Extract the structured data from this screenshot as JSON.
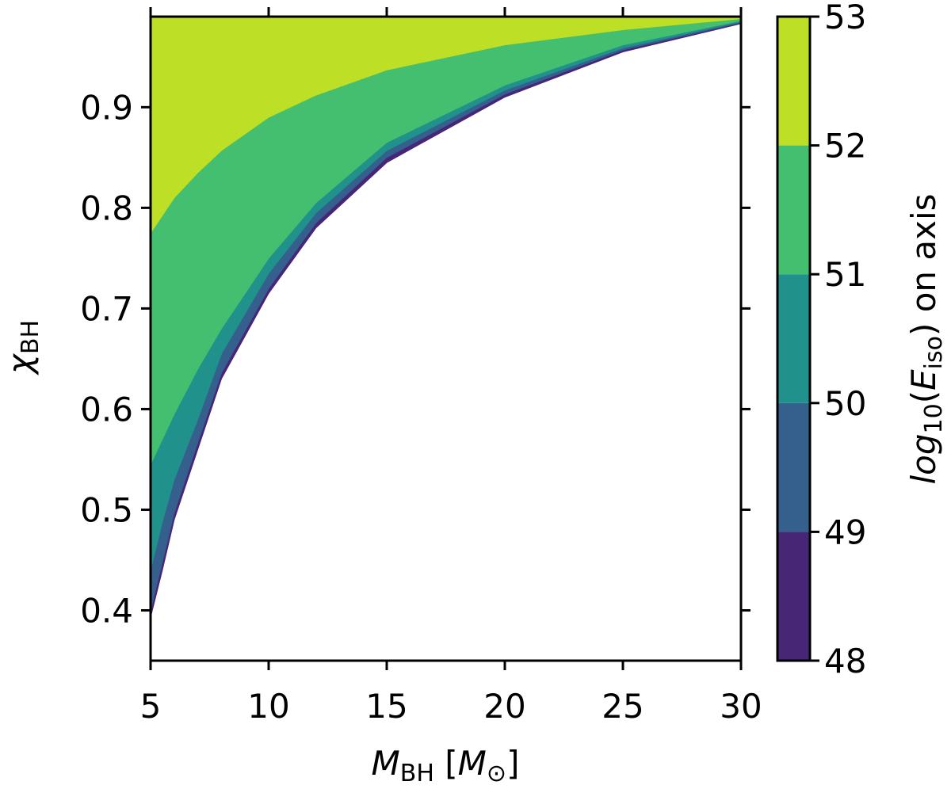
{
  "chart_data": {
    "type": "contourf",
    "xlabel": "M_BH [M_⊙]",
    "ylabel": "χ_BH",
    "xlim": [
      5,
      30
    ],
    "ylim": [
      0.35,
      0.99
    ],
    "xticks": [
      5,
      10,
      15,
      20,
      25,
      30
    ],
    "xtick_labels": [
      "5",
      "10",
      "15",
      "20",
      "25",
      "30"
    ],
    "yticks": [
      0.4,
      0.5,
      0.6,
      0.7,
      0.8,
      0.9
    ],
    "ytick_labels": [
      "0.4",
      "0.5",
      "0.6",
      "0.7",
      "0.8",
      "0.9"
    ],
    "colorbar": {
      "label": "log10(E_iso) on axis",
      "levels": [
        48,
        49,
        50,
        51,
        52,
        53
      ],
      "tick_labels": [
        "48",
        "49",
        "50",
        "51",
        "52",
        "53"
      ],
      "colors": [
        "#472676",
        "#355f8d",
        "#21918c",
        "#44bf70",
        "#bddf26"
      ]
    },
    "boundaries": [
      {
        "level": 48,
        "points": [
          [
            5,
            0.393
          ],
          [
            5.5,
            0.44
          ],
          [
            6,
            0.49
          ],
          [
            7,
            0.56
          ],
          [
            8,
            0.63
          ],
          [
            10,
            0.715
          ],
          [
            12,
            0.78
          ],
          [
            15,
            0.845
          ],
          [
            20,
            0.91
          ],
          [
            25,
            0.955
          ],
          [
            30,
            0.983
          ]
        ]
      },
      {
        "level": 49,
        "points": [
          [
            5,
            0.4
          ],
          [
            5.5,
            0.448
          ],
          [
            6,
            0.497
          ],
          [
            7,
            0.567
          ],
          [
            8,
            0.636
          ],
          [
            10,
            0.72
          ],
          [
            12,
            0.785
          ],
          [
            15,
            0.85
          ],
          [
            20,
            0.913
          ],
          [
            25,
            0.957
          ],
          [
            30,
            0.984
          ]
        ]
      },
      {
        "level": 50,
        "points": [
          [
            5,
            0.44
          ],
          [
            5.5,
            0.488
          ],
          [
            6,
            0.53
          ],
          [
            7,
            0.59
          ],
          [
            8,
            0.655
          ],
          [
            10,
            0.735
          ],
          [
            12,
            0.795
          ],
          [
            15,
            0.857
          ],
          [
            20,
            0.917
          ],
          [
            25,
            0.959
          ],
          [
            30,
            0.985
          ]
        ]
      },
      {
        "level": 51,
        "points": [
          [
            5,
            0.545
          ],
          [
            6,
            0.595
          ],
          [
            7,
            0.64
          ],
          [
            8,
            0.68
          ],
          [
            10,
            0.75
          ],
          [
            12,
            0.805
          ],
          [
            15,
            0.865
          ],
          [
            20,
            0.922
          ],
          [
            25,
            0.962
          ],
          [
            30,
            0.986
          ]
        ]
      },
      {
        "level": 52,
        "points": [
          [
            5,
            0.775
          ],
          [
            6,
            0.81
          ],
          [
            7,
            0.835
          ],
          [
            8,
            0.857
          ],
          [
            10,
            0.89
          ],
          [
            12,
            0.912
          ],
          [
            15,
            0.937
          ],
          [
            20,
            0.962
          ],
          [
            25,
            0.977
          ],
          [
            30,
            0.988
          ]
        ]
      }
    ]
  }
}
